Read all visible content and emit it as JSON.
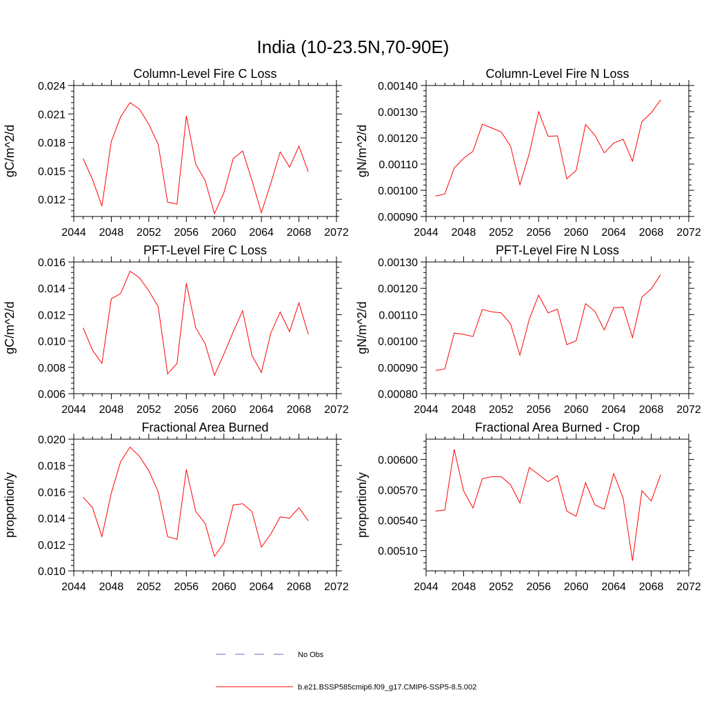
{
  "figure_title": "India (10-23.5N,70-90E)",
  "legend": {
    "obs": {
      "label": "No Obs",
      "color": "#6666cc",
      "dash": true
    },
    "model": {
      "label": "b.e21.BSSP585cmip6.f09_g17.CMIP6-SSP5-8.5.002",
      "color": "#ff0000"
    }
  },
  "chart_data": [
    {
      "type": "line",
      "title": "Column-Level Fire C Loss",
      "ylabel": "gC/m^2/d",
      "xlim": [
        2044,
        2072
      ],
      "ylim": [
        0.0102,
        0.024
      ],
      "xticks": [
        2044,
        2048,
        2052,
        2056,
        2060,
        2064,
        2068,
        2072
      ],
      "yticks": [
        0.012,
        0.015,
        0.018,
        0.021,
        0.024
      ],
      "yticklabels": [
        "0.012",
        "0.015",
        "0.018",
        "0.021",
        "0.024"
      ],
      "series": [
        {
          "color": "#ff0000",
          "x": [
            2045,
            2046,
            2047,
            2048,
            2049,
            2050,
            2051,
            2052,
            2053,
            2054,
            2055,
            2056,
            2057,
            2058,
            2059,
            2060,
            2061,
            2062,
            2063,
            2064,
            2065,
            2066,
            2067,
            2068,
            2069
          ],
          "y": [
            0.0163,
            0.0141,
            0.0113,
            0.0181,
            0.0207,
            0.0222,
            0.0215,
            0.0199,
            0.0178,
            0.0117,
            0.0115,
            0.0208,
            0.0157,
            0.014,
            0.0105,
            0.0127,
            0.0163,
            0.0171,
            0.014,
            0.0106,
            0.0137,
            0.017,
            0.0154,
            0.0176,
            0.0149
          ]
        }
      ]
    },
    {
      "type": "line",
      "title": "Column-Level Fire N Loss",
      "ylabel": "gN/m^2/d",
      "xlim": [
        2044,
        2072
      ],
      "ylim": [
        0.0009,
        0.0014
      ],
      "xticks": [
        2044,
        2048,
        2052,
        2056,
        2060,
        2064,
        2068,
        2072
      ],
      "yticks": [
        0.0009,
        0.001,
        0.0011,
        0.0012,
        0.0013,
        0.0014
      ],
      "yticklabels": [
        "0.00090",
        "0.00100",
        "0.00110",
        "0.00120",
        "0.00130",
        "0.00140"
      ],
      "series": [
        {
          "color": "#ff0000",
          "x": [
            2045,
            2046,
            2047,
            2048,
            2049,
            2050,
            2051,
            2052,
            2053,
            2054,
            2055,
            2056,
            2057,
            2058,
            2059,
            2060,
            2061,
            2062,
            2063,
            2064,
            2065,
            2066,
            2067,
            2068,
            2069
          ],
          "y": [
            0.000978,
            0.000986,
            0.001085,
            0.001122,
            0.001149,
            0.001252,
            0.001238,
            0.001223,
            0.001169,
            0.001021,
            0.00114,
            0.0013,
            0.001206,
            0.001208,
            0.001044,
            0.001076,
            0.001251,
            0.00121,
            0.001143,
            0.00118,
            0.001195,
            0.001111,
            0.001262,
            0.001296,
            0.001345
          ]
        }
      ]
    },
    {
      "type": "line",
      "title": "PFT-Level Fire C Loss",
      "ylabel": "gC/m^2/d",
      "xlim": [
        2044,
        2072
      ],
      "ylim": [
        0.006,
        0.016
      ],
      "xticks": [
        2044,
        2048,
        2052,
        2056,
        2060,
        2064,
        2068,
        2072
      ],
      "yticks": [
        0.006,
        0.008,
        0.01,
        0.012,
        0.014,
        0.016
      ],
      "yticklabels": [
        "0.006",
        "0.008",
        "0.010",
        "0.012",
        "0.014",
        "0.016"
      ],
      "series": [
        {
          "color": "#ff0000",
          "x": [
            2045,
            2046,
            2047,
            2048,
            2049,
            2050,
            2051,
            2052,
            2053,
            2054,
            2055,
            2056,
            2057,
            2058,
            2059,
            2060,
            2061,
            2062,
            2063,
            2064,
            2065,
            2066,
            2067,
            2068,
            2069
          ],
          "y": [
            0.011,
            0.0093,
            0.0083,
            0.0132,
            0.0136,
            0.0153,
            0.0148,
            0.0138,
            0.0126,
            0.0075,
            0.0083,
            0.0144,
            0.011,
            0.0098,
            0.0074,
            0.009,
            0.0107,
            0.0123,
            0.0089,
            0.0076,
            0.0106,
            0.0122,
            0.0107,
            0.0129,
            0.0105
          ]
        }
      ]
    },
    {
      "type": "line",
      "title": "PFT-Level Fire N Loss",
      "ylabel": "gN/m^2/d",
      "xlim": [
        2044,
        2072
      ],
      "ylim": [
        0.0008,
        0.0013
      ],
      "xticks": [
        2044,
        2048,
        2052,
        2056,
        2060,
        2064,
        2068,
        2072
      ],
      "yticks": [
        0.0008,
        0.0009,
        0.001,
        0.0011,
        0.0012,
        0.0013
      ],
      "yticklabels": [
        "0.00080",
        "0.00090",
        "0.00100",
        "0.00110",
        "0.00120",
        "0.00130"
      ],
      "series": [
        {
          "color": "#ff0000",
          "x": [
            2045,
            2046,
            2047,
            2048,
            2049,
            2050,
            2051,
            2052,
            2053,
            2054,
            2055,
            2056,
            2057,
            2058,
            2059,
            2060,
            2061,
            2062,
            2063,
            2064,
            2065,
            2066,
            2067,
            2068,
            2069
          ],
          "y": [
            0.000888,
            0.000894,
            0.00103,
            0.001025,
            0.001017,
            0.00112,
            0.001111,
            0.001107,
            0.001065,
            0.000946,
            0.001083,
            0.001174,
            0.001107,
            0.001121,
            0.000986,
            0.001001,
            0.001142,
            0.001112,
            0.001042,
            0.001126,
            0.001128,
            0.001013,
            0.001167,
            0.001198,
            0.001252
          ]
        }
      ]
    },
    {
      "type": "line",
      "title": "Fractional Area Burned",
      "ylabel": "proportion/y",
      "xlim": [
        2044,
        2072
      ],
      "ylim": [
        0.01,
        0.02
      ],
      "xticks": [
        2044,
        2048,
        2052,
        2056,
        2060,
        2064,
        2068,
        2072
      ],
      "yticks": [
        0.01,
        0.012,
        0.014,
        0.016,
        0.018,
        0.02
      ],
      "yticklabels": [
        "0.010",
        "0.012",
        "0.014",
        "0.016",
        "0.018",
        "0.020"
      ],
      "series": [
        {
          "color": "#ff0000",
          "x": [
            2045,
            2046,
            2047,
            2048,
            2049,
            2050,
            2051,
            2052,
            2053,
            2054,
            2055,
            2056,
            2057,
            2058,
            2059,
            2060,
            2061,
            2062,
            2063,
            2064,
            2065,
            2066,
            2067,
            2068,
            2069
          ],
          "y": [
            0.0156,
            0.0148,
            0.0126,
            0.0159,
            0.0183,
            0.0194,
            0.0187,
            0.0176,
            0.016,
            0.0126,
            0.0124,
            0.0177,
            0.0145,
            0.0136,
            0.0111,
            0.0121,
            0.015,
            0.0151,
            0.0145,
            0.0118,
            0.0128,
            0.0141,
            0.014,
            0.0148,
            0.0138
          ]
        }
      ]
    },
    {
      "type": "line",
      "title": "Fractional Area Burned - Crop",
      "ylabel": "proportion/y",
      "xlim": [
        2044,
        2072
      ],
      "ylim": [
        0.0049,
        0.0062
      ],
      "xticks": [
        2044,
        2048,
        2052,
        2056,
        2060,
        2064,
        2068,
        2072
      ],
      "yticks": [
        0.0051,
        0.0054,
        0.0057,
        0.006
      ],
      "yticklabels": [
        "0.00510",
        "0.00540",
        "0.00570",
        "0.00600"
      ],
      "series": [
        {
          "color": "#ff0000",
          "x": [
            2045,
            2046,
            2047,
            2048,
            2049,
            2050,
            2051,
            2052,
            2053,
            2054,
            2055,
            2056,
            2057,
            2058,
            2059,
            2060,
            2061,
            2062,
            2063,
            2064,
            2065,
            2066,
            2067,
            2068,
            2069
          ],
          "y": [
            0.00549,
            0.0055,
            0.0061,
            0.00569,
            0.00552,
            0.00581,
            0.00583,
            0.00583,
            0.00575,
            0.00557,
            0.00592,
            0.00585,
            0.00578,
            0.00584,
            0.00549,
            0.00544,
            0.00577,
            0.00555,
            0.00551,
            0.00586,
            0.00562,
            0.005,
            0.00569,
            0.00559,
            0.00585
          ]
        }
      ]
    }
  ]
}
